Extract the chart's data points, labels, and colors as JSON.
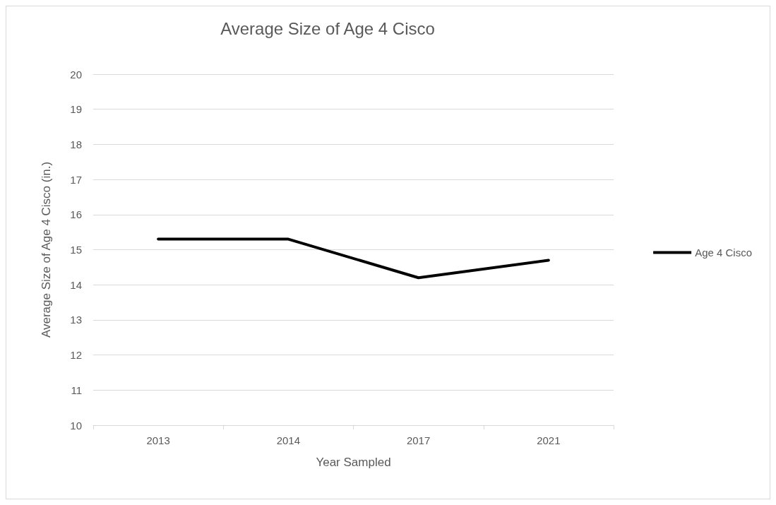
{
  "chart_data": {
    "type": "line",
    "title": "Average Size of Age 4 Cisco",
    "xlabel": "Year Sampled",
    "ylabel": "Average Size of Age 4 Cisco (in.)",
    "categories": [
      "2013",
      "2014",
      "2017",
      "2021"
    ],
    "series": [
      {
        "name": "Age 4 Cisco",
        "color": "#000000",
        "values": [
          15.3,
          15.3,
          14.2,
          14.7
        ]
      }
    ],
    "ylim": [
      10,
      20
    ],
    "yticks": [
      10,
      11,
      12,
      13,
      14,
      15,
      16,
      17,
      18,
      19,
      20
    ],
    "grid": "y",
    "legend": "right",
    "marker": "none",
    "line_style": "solid"
  }
}
